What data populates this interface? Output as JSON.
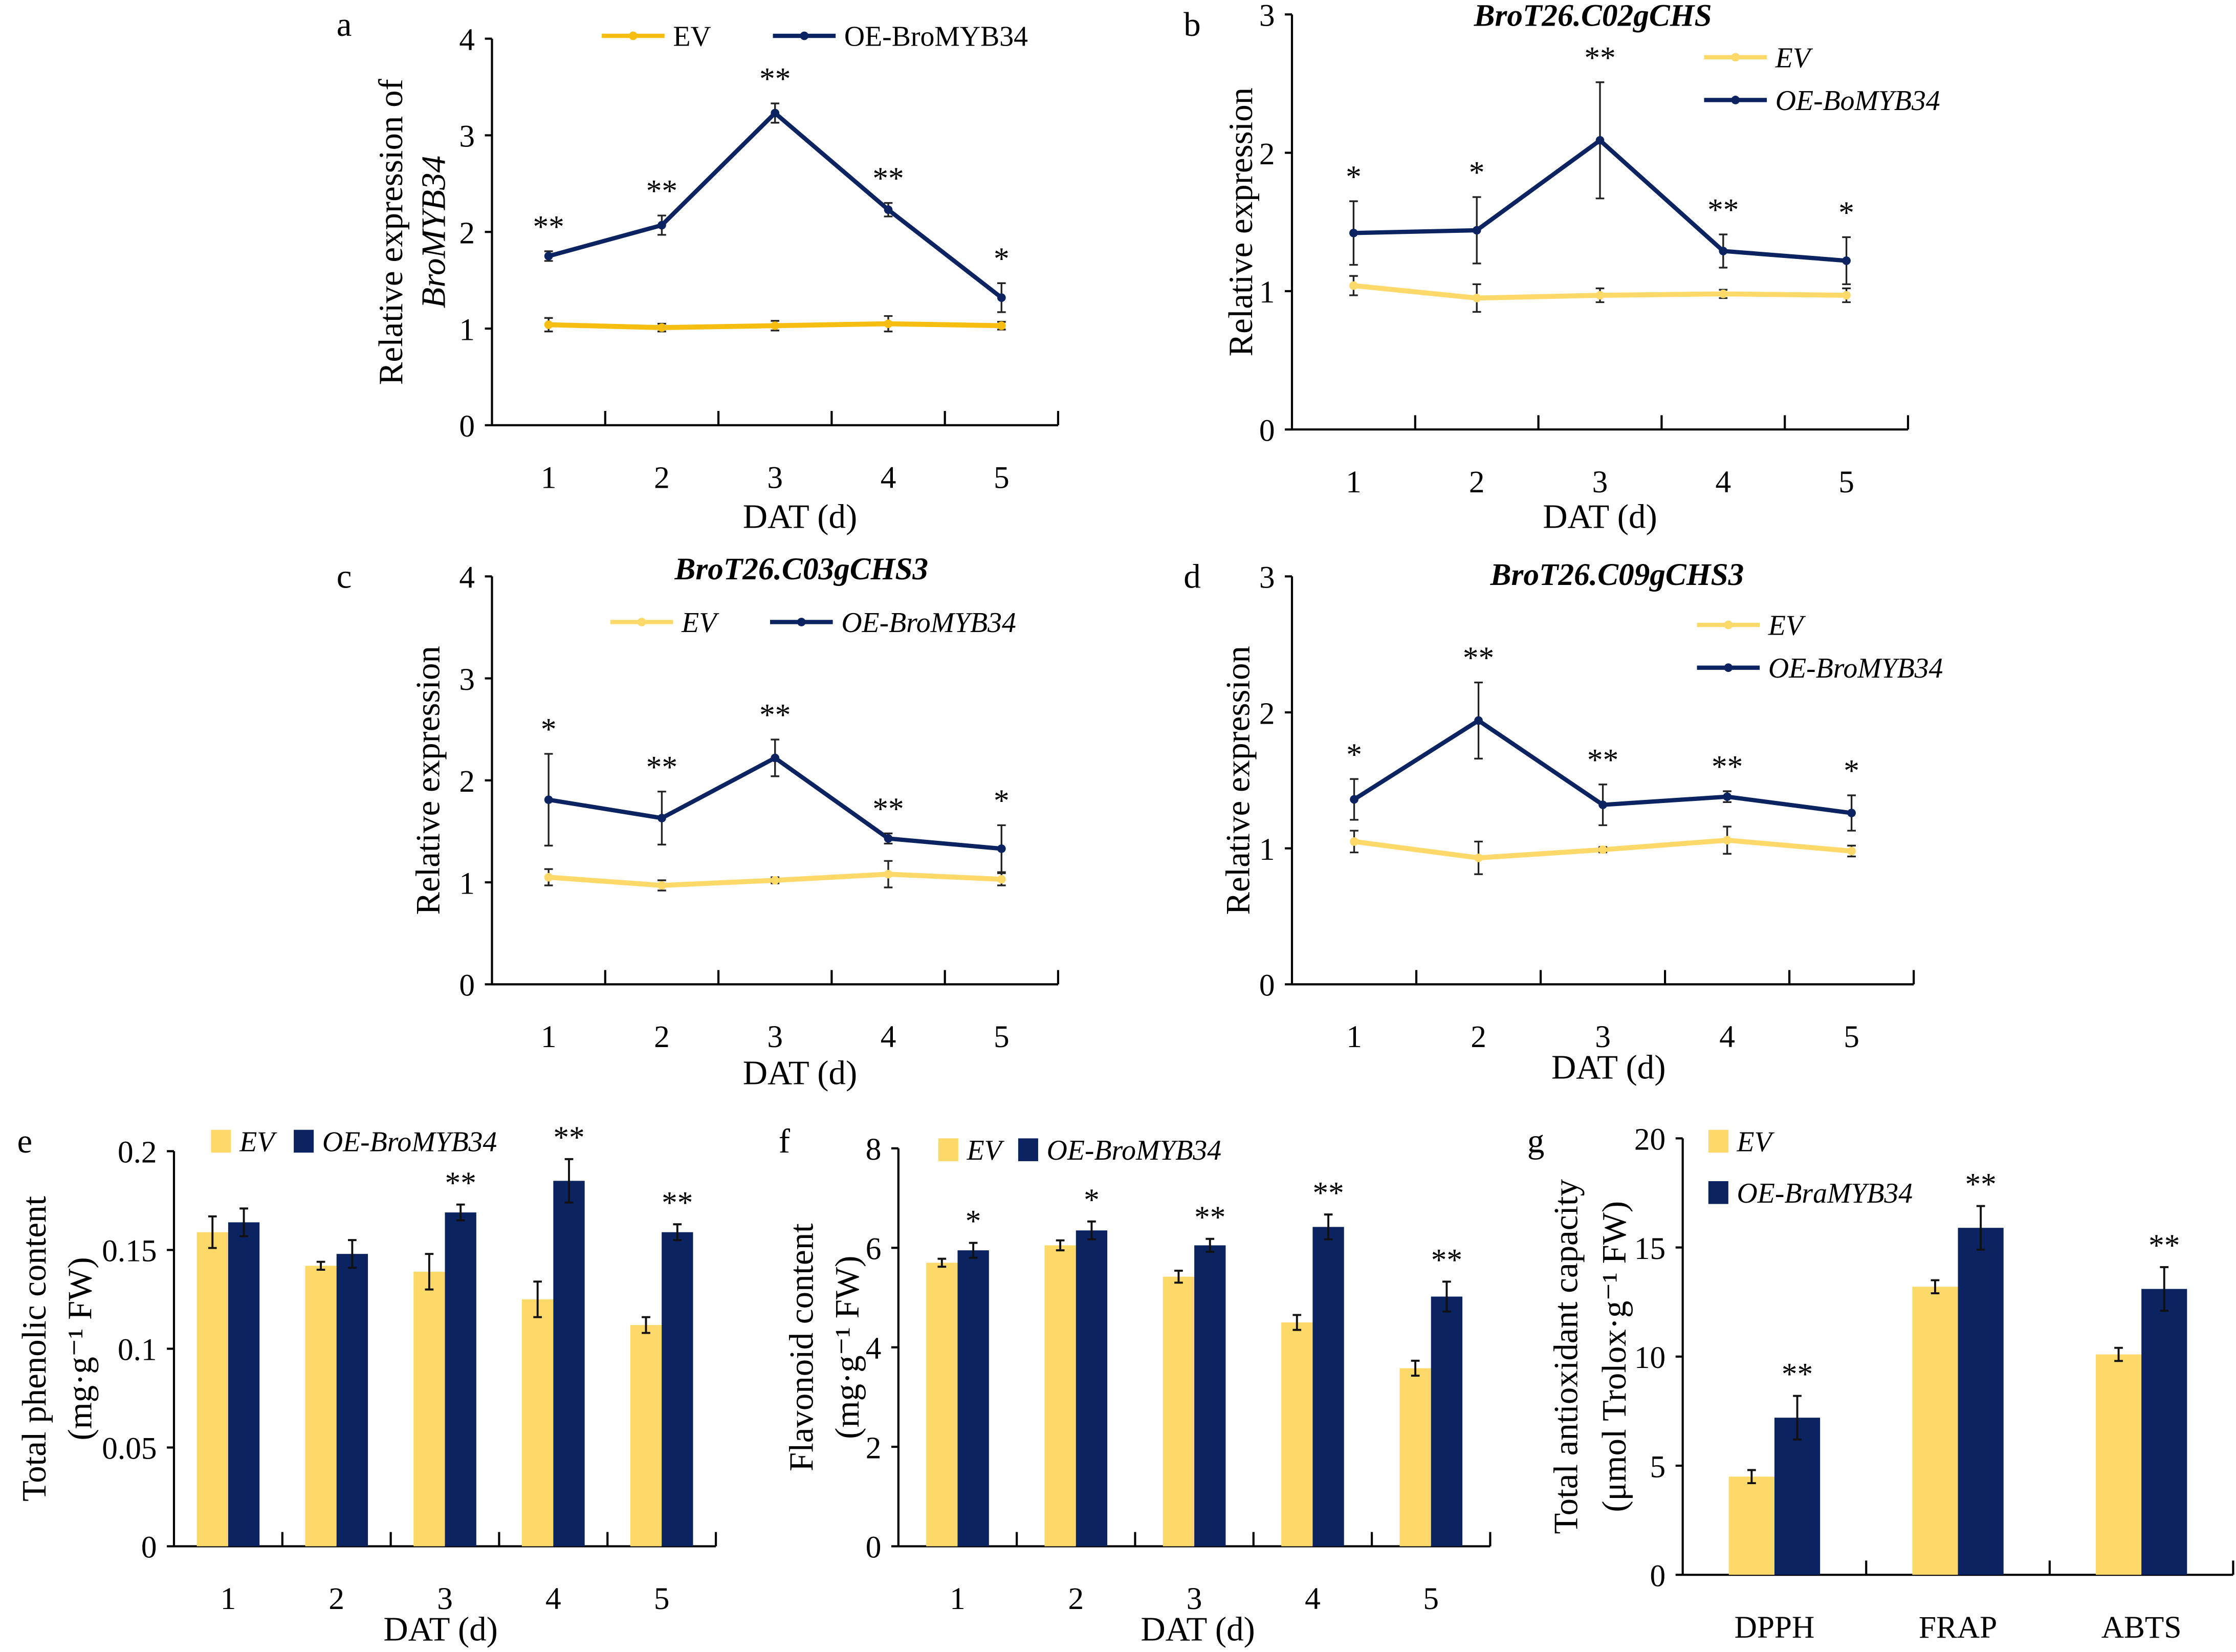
{
  "colors": {
    "ev_line_a": "#F5BE10",
    "ev": "#FDD96A",
    "oe": "#0B2360"
  },
  "chart_data": [
    {
      "panel": "a",
      "type": "line",
      "title": "",
      "xlabel": "DAT (d)",
      "ylabel": [
        "Relative expression of",
        "BroMYB34"
      ],
      "categories": [
        "1",
        "2",
        "3",
        "4",
        "5"
      ],
      "ylim": [
        0,
        4
      ],
      "yticks": [
        "0",
        "1",
        "2",
        "3",
        "4"
      ],
      "legend_placement": "top",
      "series": [
        {
          "name": "EV",
          "values": [
            1.04,
            1.01,
            1.03,
            1.05,
            1.03
          ],
          "errors": [
            0.07,
            0.04,
            0.05,
            0.08,
            0.04
          ]
        },
        {
          "name": "OE-BroMYB34",
          "values": [
            1.75,
            2.07,
            3.23,
            2.23,
            1.32
          ],
          "errors": [
            0.05,
            0.1,
            0.1,
            0.07,
            0.15
          ]
        }
      ],
      "significance": [
        "**",
        "**",
        "**",
        "**",
        "*"
      ]
    },
    {
      "panel": "b",
      "type": "line",
      "title": "BroT26.C02gCHS",
      "xlabel": "DAT (d)",
      "ylabel": [
        "Relative expression"
      ],
      "categories": [
        "1",
        "2",
        "3",
        "4",
        "5"
      ],
      "ylim": [
        0,
        3
      ],
      "yticks": [
        "0",
        "1",
        "2",
        "3"
      ],
      "legend_placement": "top-right",
      "series": [
        {
          "name": "EV",
          "values": [
            1.04,
            0.95,
            0.97,
            0.98,
            0.97
          ],
          "errors": [
            0.07,
            0.1,
            0.05,
            0.03,
            0.05
          ]
        },
        {
          "name": "OE-BoMYB34",
          "values": [
            1.42,
            1.44,
            2.09,
            1.29,
            1.22
          ],
          "errors": [
            0.23,
            0.24,
            0.42,
            0.12,
            0.17
          ]
        }
      ],
      "significance": [
        "*",
        "*",
        "**",
        "**",
        "*"
      ]
    },
    {
      "panel": "c",
      "type": "line",
      "title": "BroT26.C03gCHS3",
      "xlabel": "DAT (d)",
      "ylabel": [
        "Relative expression"
      ],
      "categories": [
        "1",
        "2",
        "3",
        "4",
        "5"
      ],
      "ylim": [
        0,
        4
      ],
      "yticks": [
        "0",
        "1",
        "2",
        "3",
        "4"
      ],
      "legend_placement": "top",
      "series": [
        {
          "name": "EV",
          "values": [
            1.05,
            0.97,
            1.02,
            1.08,
            1.03
          ],
          "errors": [
            0.08,
            0.05,
            0.03,
            0.13,
            0.06
          ]
        },
        {
          "name": "OE-BroMYB34",
          "values": [
            1.81,
            1.63,
            2.22,
            1.43,
            1.33
          ],
          "errors": [
            0.45,
            0.26,
            0.18,
            0.05,
            0.23
          ]
        }
      ],
      "significance": [
        "*",
        "**",
        "**",
        "**",
        "*"
      ]
    },
    {
      "panel": "d",
      "type": "line",
      "title": "BroT26.C09gCHS3",
      "xlabel": "DAT (d)",
      "ylabel": [
        "Relative expression"
      ],
      "categories": [
        "1",
        "2",
        "3",
        "4",
        "5"
      ],
      "ylim": [
        0,
        3
      ],
      "yticks": [
        "0",
        "1",
        "2",
        "3"
      ],
      "legend_placement": "top-right",
      "series": [
        {
          "name": "EV",
          "values": [
            1.05,
            0.93,
            0.99,
            1.06,
            0.98
          ],
          "errors": [
            0.08,
            0.12,
            0.02,
            0.1,
            0.04
          ]
        },
        {
          "name": "OE-BroMYB34",
          "values": [
            1.36,
            1.94,
            1.32,
            1.38,
            1.26
          ],
          "errors": [
            0.15,
            0.28,
            0.15,
            0.04,
            0.13
          ]
        }
      ],
      "significance": [
        "*",
        "**",
        "**",
        "**",
        "*"
      ]
    },
    {
      "panel": "e",
      "type": "bar",
      "title": "",
      "xlabel": "DAT (d)",
      "ylabel": [
        "Total phenolic content",
        "(mg·g⁻¹ FW)"
      ],
      "categories": [
        "1",
        "2",
        "3",
        "4",
        "5"
      ],
      "ylim": [
        0,
        0.2
      ],
      "yticks": [
        "0",
        "0.05",
        "0.1",
        "0.15",
        "0.2"
      ],
      "legend_placement": "top",
      "series": [
        {
          "name": "EV",
          "values": [
            0.159,
            0.142,
            0.139,
            0.125,
            0.112
          ],
          "errors": [
            0.008,
            0.002,
            0.009,
            0.009,
            0.004
          ]
        },
        {
          "name": "OE-BroMYB34",
          "values": [
            0.164,
            0.148,
            0.169,
            0.185,
            0.159
          ],
          "errors": [
            0.007,
            0.007,
            0.004,
            0.011,
            0.004
          ]
        }
      ],
      "significance": [
        "",
        "",
        "**",
        "**",
        "**"
      ]
    },
    {
      "panel": "f",
      "type": "bar",
      "title": "",
      "xlabel": "DAT (d)",
      "ylabel": [
        "Flavonoid content",
        "(mg·g⁻¹ FW)"
      ],
      "categories": [
        "1",
        "2",
        "3",
        "4",
        "5"
      ],
      "ylim": [
        0,
        8
      ],
      "yticks": [
        "0",
        "2",
        "4",
        "6",
        "8"
      ],
      "legend_placement": "top",
      "series": [
        {
          "name": "EV",
          "values": [
            5.7,
            6.05,
            5.42,
            4.5,
            3.58
          ],
          "errors": [
            0.08,
            0.1,
            0.12,
            0.15,
            0.15
          ]
        },
        {
          "name": "OE-BroMYB34",
          "values": [
            5.95,
            6.35,
            6.05,
            6.42,
            5.02
          ],
          "errors": [
            0.15,
            0.18,
            0.13,
            0.25,
            0.3
          ]
        }
      ],
      "significance": [
        "*",
        "*",
        "**",
        "**",
        "**"
      ]
    },
    {
      "panel": "g",
      "type": "bar",
      "title": "",
      "xlabel": "",
      "ylabel": [
        "Total antioxidant capacity",
        "(μmol Trolox·g⁻¹ FW)"
      ],
      "categories": [
        "DPPH",
        "FRAP",
        "ABTS"
      ],
      "ylim": [
        0,
        20
      ],
      "yticks": [
        "0",
        "5",
        "10",
        "15",
        "20"
      ],
      "legend_placement": "top-left",
      "series": [
        {
          "name": "EV",
          "values": [
            4.5,
            13.2,
            10.1
          ],
          "errors": [
            0.3,
            0.3,
            0.3
          ]
        },
        {
          "name": "OE-BraMYB34",
          "values": [
            7.2,
            15.9,
            13.1
          ],
          "errors": [
            1.0,
            1.0,
            1.0
          ]
        }
      ],
      "significance": [
        "**",
        "**",
        "**"
      ]
    }
  ]
}
